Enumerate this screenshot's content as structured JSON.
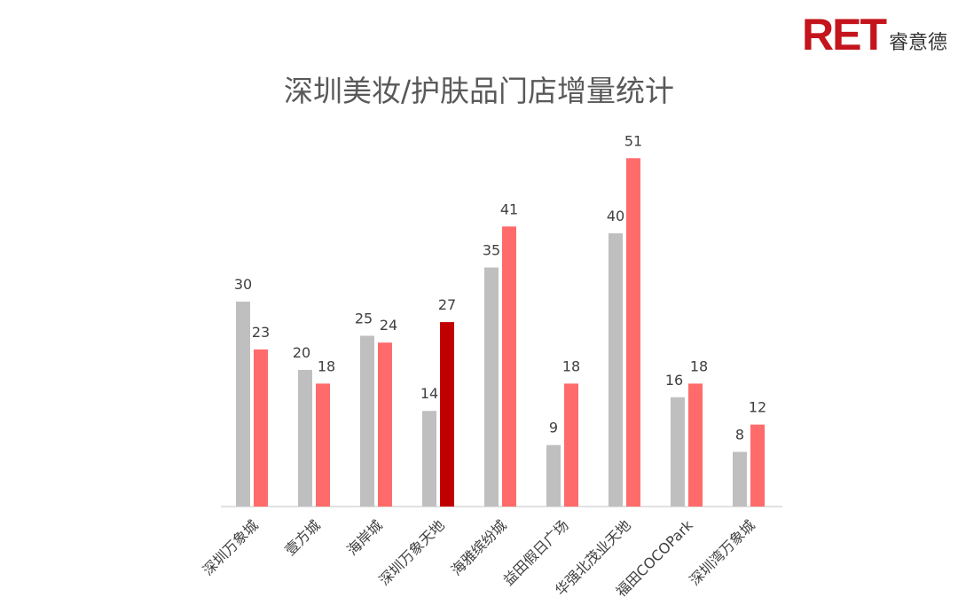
{
  "logo": {
    "brand": "RET",
    "brand_cn": "睿意德"
  },
  "chart_data": {
    "type": "bar",
    "title": "深圳美妆/护肤品门店增量统计",
    "xlabel": "",
    "ylabel": "",
    "ylim": [
      0,
      60
    ],
    "grid": false,
    "legend": "none",
    "categories": [
      "深圳万象城",
      "壹方城",
      "海岸城",
      "深圳万象天地",
      "海雅缤纷城",
      "益田假日广场",
      "华强北茂业天地",
      "福田COCOPark",
      "深圳湾万象城"
    ],
    "series": [
      {
        "values": [
          30,
          20,
          25,
          14,
          35,
          9,
          40,
          16,
          8
        ]
      },
      {
        "values": [
          23,
          18,
          24,
          27,
          41,
          18,
          51,
          18,
          12
        ]
      }
    ],
    "highlight": {
      "series": 1,
      "index": 3
    },
    "colors": {
      "series0": "#bfbfbf",
      "series1": "#ff6b6b",
      "highlight": "#c00000",
      "axis": "#d9d9d9",
      "label": "#404040"
    }
  }
}
